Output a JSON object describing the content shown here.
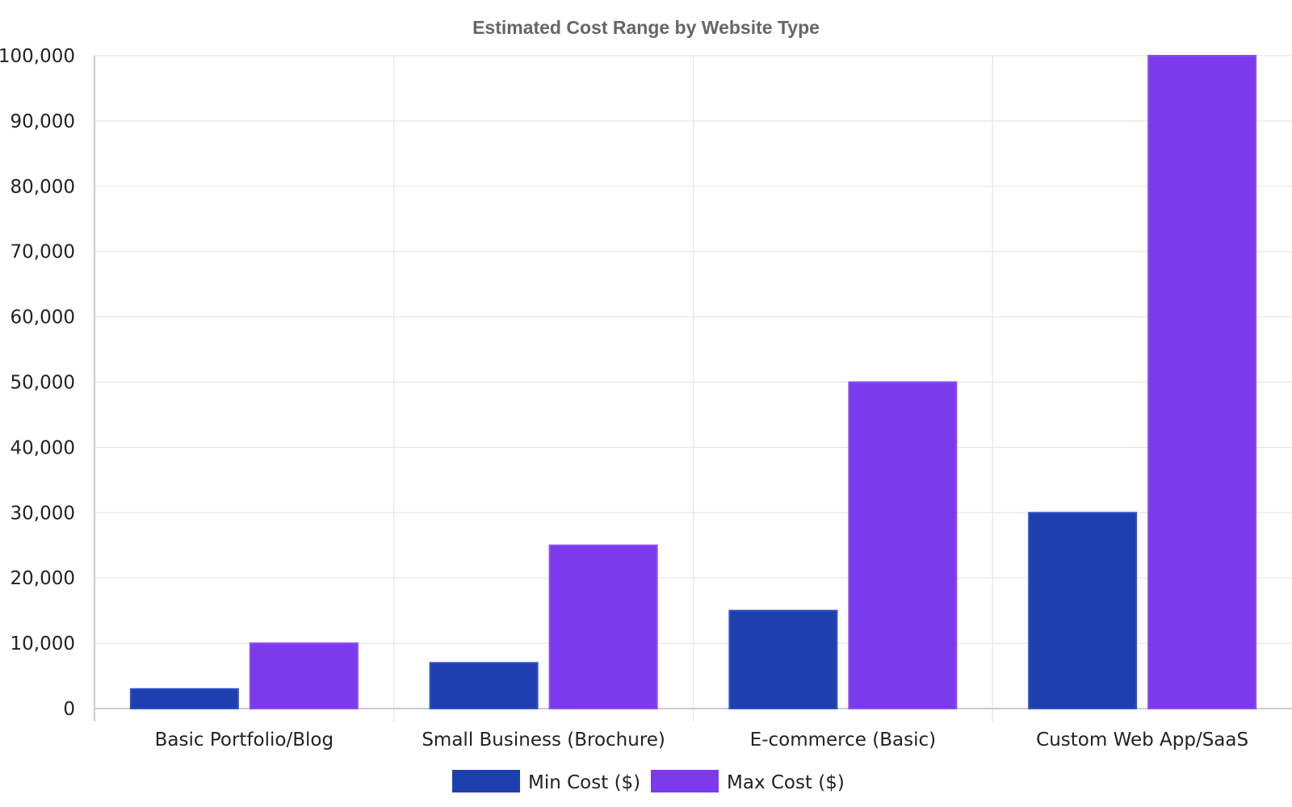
{
  "chart_data": {
    "type": "bar",
    "title": "Estimated Cost Range by Website Type",
    "xlabel": "",
    "ylabel": "",
    "categories": [
      "Basic Portfolio/Blog",
      "Small Business (Brochure)",
      "E-commerce (Basic)",
      "Custom Web App/SaaS"
    ],
    "series": [
      {
        "name": "Min Cost ($)",
        "values": [
          3000,
          7000,
          15000,
          30000
        ],
        "color": "#1e40af"
      },
      {
        "name": "Max Cost ($)",
        "values": [
          10000,
          25000,
          50000,
          100000
        ],
        "color": "#7c3aed"
      }
    ],
    "ylim": [
      0,
      100000
    ],
    "yticks": [
      "0",
      "10,000",
      "20,000",
      "30,000",
      "40,000",
      "50,000",
      "60,000",
      "70,000",
      "80,000",
      "90,000",
      "100,000"
    ],
    "grid": true,
    "legend_position": "bottom-center"
  }
}
